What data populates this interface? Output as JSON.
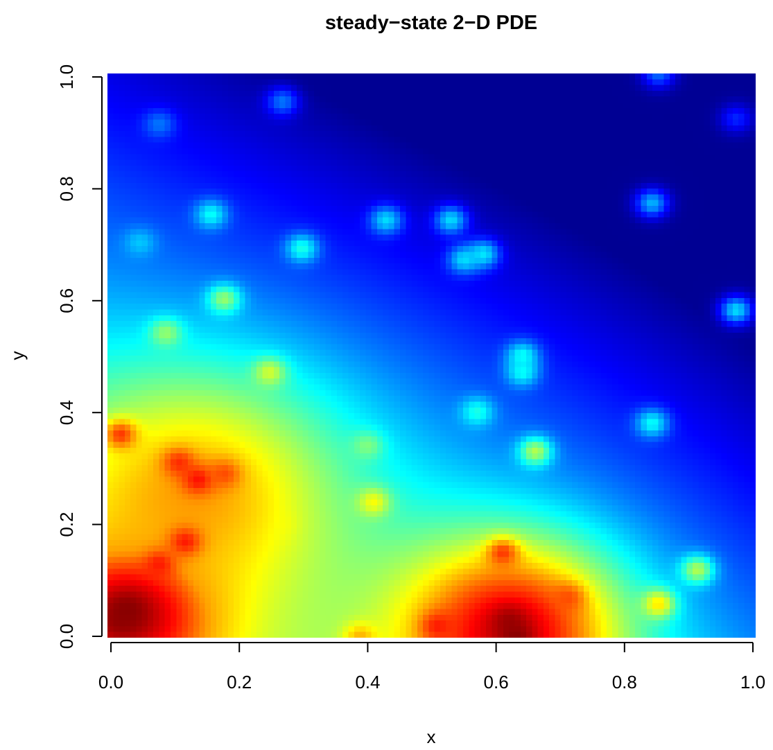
{
  "chart_data": {
    "type": "heatmap",
    "title": "steady−state 2−D PDE",
    "xlabel": "x",
    "ylabel": "y",
    "xlim": [
      0,
      1
    ],
    "ylim": [
      0,
      1
    ],
    "x_ticks": [
      "0.0",
      "0.2",
      "0.4",
      "0.6",
      "0.8",
      "1.0"
    ],
    "y_ticks": [
      "0.0",
      "0.2",
      "0.4",
      "0.6",
      "0.8",
      "1.0"
    ],
    "grid": false,
    "legend": "none",
    "colorscale": "matlab.like (dark blue → blue → cyan → yellow → red → dark red)",
    "colorscale_stops": [
      "#00007F",
      "#0000FF",
      "#007FFF",
      "#00FFFF",
      "#7FFF7F",
      "#FFFF00",
      "#FF7F00",
      "#FF0000",
      "#7F0000"
    ],
    "field_description": "smooth field, high (red) near bottom-left and bottom-center, decreasing to dark blue at top-right; scattered point sources",
    "hot_regions": [
      {
        "x": 0.03,
        "y": 0.04,
        "level": 0.97,
        "spread": 0.1
      },
      {
        "x": 0.13,
        "y": 0.25,
        "level": 0.72,
        "spread": 0.16
      },
      {
        "x": 0.62,
        "y": 0.01,
        "level": 0.93,
        "spread": 0.12
      }
    ],
    "point_sources": [
      {
        "x": 0.02,
        "y": 0.03,
        "level": 0.98
      },
      {
        "x": 0.03,
        "y": 0.05,
        "level": 0.99
      },
      {
        "x": 0.08,
        "y": 0.13,
        "level": 0.85
      },
      {
        "x": 0.12,
        "y": 0.17,
        "level": 0.85
      },
      {
        "x": 0.02,
        "y": 0.36,
        "level": 0.82
      },
      {
        "x": 0.11,
        "y": 0.31,
        "level": 0.83
      },
      {
        "x": 0.14,
        "y": 0.28,
        "level": 0.86
      },
      {
        "x": 0.18,
        "y": 0.29,
        "level": 0.8
      },
      {
        "x": 0.26,
        "y": 0.2,
        "level": 0.62
      },
      {
        "x": 0.39,
        "y": 0.0,
        "level": 0.7
      },
      {
        "x": 0.51,
        "y": 0.02,
        "level": 0.85
      },
      {
        "x": 0.61,
        "y": 0.15,
        "level": 0.82
      },
      {
        "x": 0.62,
        "y": 0.03,
        "level": 0.97
      },
      {
        "x": 0.63,
        "y": 0.0,
        "level": 0.99
      },
      {
        "x": 0.71,
        "y": 0.07,
        "level": 0.8
      },
      {
        "x": 0.85,
        "y": 0.06,
        "level": 0.65
      },
      {
        "x": 0.91,
        "y": 0.12,
        "level": 0.55
      },
      {
        "x": 0.41,
        "y": 0.24,
        "level": 0.62
      },
      {
        "x": 0.4,
        "y": 0.34,
        "level": 0.5
      },
      {
        "x": 0.66,
        "y": 0.33,
        "level": 0.55
      },
      {
        "x": 0.25,
        "y": 0.47,
        "level": 0.58
      },
      {
        "x": 0.09,
        "y": 0.54,
        "level": 0.52
      },
      {
        "x": 0.18,
        "y": 0.6,
        "level": 0.52
      },
      {
        "x": 0.57,
        "y": 0.4,
        "level": 0.4
      },
      {
        "x": 0.64,
        "y": 0.5,
        "level": 0.38
      },
      {
        "x": 0.64,
        "y": 0.47,
        "level": 0.38
      },
      {
        "x": 0.84,
        "y": 0.38,
        "level": 0.38
      },
      {
        "x": 0.97,
        "y": 0.58,
        "level": 0.34
      },
      {
        "x": 0.3,
        "y": 0.69,
        "level": 0.4
      },
      {
        "x": 0.16,
        "y": 0.75,
        "level": 0.38
      },
      {
        "x": 0.05,
        "y": 0.7,
        "level": 0.32
      },
      {
        "x": 0.43,
        "y": 0.74,
        "level": 0.34
      },
      {
        "x": 0.53,
        "y": 0.74,
        "level": 0.34
      },
      {
        "x": 0.55,
        "y": 0.67,
        "level": 0.34
      },
      {
        "x": 0.58,
        "y": 0.68,
        "level": 0.35
      },
      {
        "x": 0.84,
        "y": 0.77,
        "level": 0.3
      },
      {
        "x": 0.08,
        "y": 0.91,
        "level": 0.24
      },
      {
        "x": 0.27,
        "y": 0.95,
        "level": 0.24
      },
      {
        "x": 0.85,
        "y": 1.0,
        "level": 0.23
      },
      {
        "x": 0.97,
        "y": 0.92,
        "level": 0.16
      }
    ]
  }
}
